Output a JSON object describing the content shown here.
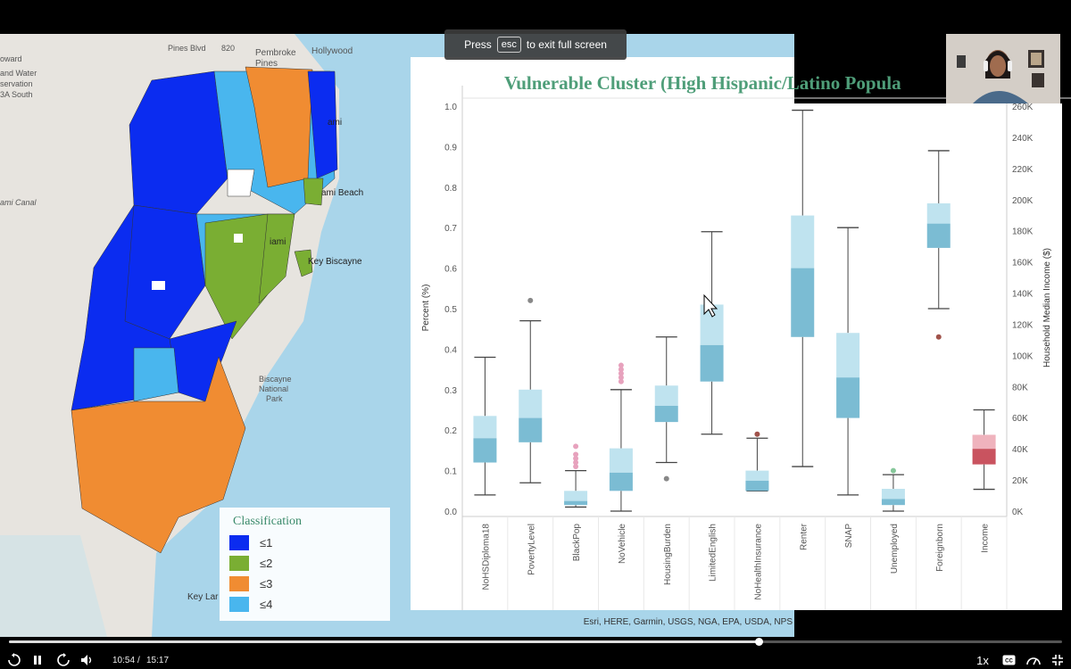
{
  "fullscreen_toast": {
    "before": "Press",
    "key": "esc",
    "after": "to exit full screen"
  },
  "map": {
    "place_labels": [
      "Pines Blvd",
      "820",
      "Pembroke",
      "Pines",
      "Hollywood",
      "oward",
      "and Water",
      "servation",
      "3A South",
      "ami",
      "ami Beach",
      "ami Canal",
      "iami",
      "Key Biscayne",
      "Biscayne",
      "National",
      "Park",
      "Key Lar"
    ],
    "legend": {
      "title": "Classification",
      "items": [
        {
          "label": "≤1",
          "color": "#0b2cf0"
        },
        {
          "label": "≤2",
          "color": "#7aae33"
        },
        {
          "label": "≤3",
          "color": "#f08c32"
        },
        {
          "label": "≤4",
          "color": "#49b6ee"
        }
      ]
    },
    "attribution": "Esri, HERE, Garmin, USGS, NGA, EPA, USDA, NPS"
  },
  "chart_data": {
    "type": "boxplot",
    "title": "Vulnerable Cluster (High Hispanic/Latino Popula",
    "ylabel": "Percent (%)",
    "y2label": "Household Median Income ($)",
    "ylim": [
      0,
      1.0
    ],
    "y2lim": [
      0,
      260000
    ],
    "yticks": [
      "0.0",
      "0.1",
      "0.2",
      "0.3",
      "0.4",
      "0.5",
      "0.6",
      "0.7",
      "0.8",
      "0.9",
      "1.0"
    ],
    "y2ticks": [
      "0K",
      "20K",
      "40K",
      "60K",
      "80K",
      "100K",
      "120K",
      "140K",
      "160K",
      "180K",
      "200K",
      "220K",
      "240K",
      "260K"
    ],
    "categories": [
      "NoHSDiploma18",
      "PovertyLevel",
      "BlackPop",
      "NoVehicle",
      "HousingBurden",
      "LimitedEnglish",
      "NoHealthInsurance",
      "Renter",
      "SNAP",
      "Unemployed",
      "Foreignborn",
      "Income"
    ],
    "boxes": [
      {
        "min": 0.04,
        "q1": 0.12,
        "median": 0.18,
        "q3": 0.235,
        "max": 0.38,
        "outliers": []
      },
      {
        "min": 0.07,
        "q1": 0.17,
        "median": 0.23,
        "q3": 0.3,
        "max": 0.47,
        "outliers": [
          0.52
        ]
      },
      {
        "min": 0.01,
        "q1": 0.015,
        "median": 0.025,
        "q3": 0.05,
        "max": 0.1,
        "outliers": [
          0.11,
          0.12,
          0.13,
          0.14,
          0.16
        ]
      },
      {
        "min": 0.0,
        "q1": 0.05,
        "median": 0.095,
        "q3": 0.155,
        "max": 0.3,
        "outliers": [
          0.32,
          0.33,
          0.34,
          0.35,
          0.36
        ]
      },
      {
        "min": 0.12,
        "q1": 0.22,
        "median": 0.26,
        "q3": 0.31,
        "max": 0.43,
        "outliers": [
          0.08
        ]
      },
      {
        "min": 0.19,
        "q1": 0.32,
        "median": 0.41,
        "q3": 0.51,
        "max": 0.69,
        "outliers": []
      },
      {
        "min": 0.05,
        "q1": 0.05,
        "median": 0.075,
        "q3": 0.1,
        "max": 0.18,
        "outliers": [
          0.19
        ]
      },
      {
        "min": 0.11,
        "q1": 0.43,
        "median": 0.6,
        "q3": 0.73,
        "max": 0.99,
        "outliers": []
      },
      {
        "min": 0.04,
        "q1": 0.23,
        "median": 0.33,
        "q3": 0.44,
        "max": 0.7,
        "outliers": []
      },
      {
        "min": 0.0,
        "q1": 0.015,
        "median": 0.03,
        "q3": 0.055,
        "max": 0.09,
        "outliers": [
          0.1
        ]
      },
      {
        "min": 0.5,
        "q1": 0.65,
        "median": 0.71,
        "q3": 0.76,
        "max": 0.89,
        "outliers": [
          0.43
        ]
      },
      {
        "min": 14000,
        "q1": 30000,
        "median": 40000,
        "q3": 49000,
        "max": 65000,
        "outliers": [],
        "axis": "right"
      }
    ],
    "colors": {
      "box_upper": "#bfe3ef",
      "box_lower": "#7bbcd3",
      "income_upper": "#efb3bd",
      "income_lower": "#c9535f",
      "title": "#4f9e79"
    }
  },
  "player": {
    "current_time": "10:54",
    "separator": "/",
    "duration": "15:17",
    "progress": 0.712,
    "speed": "1x",
    "cc": "CC",
    "buttons": [
      "replay-icon",
      "pause-icon",
      "forward-icon",
      "volume-icon",
      "cc-icon",
      "quality-icon",
      "exit-fullscreen-icon"
    ]
  }
}
